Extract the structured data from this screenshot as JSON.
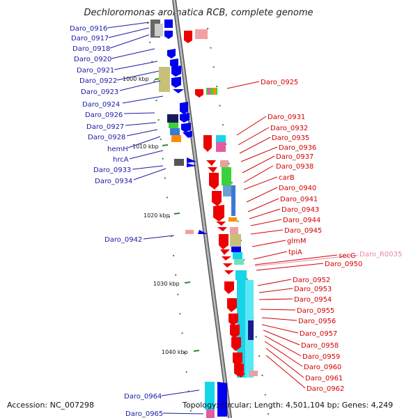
{
  "title": "Dechloromonas aromatica RCB, complete genome",
  "accession": "Accession: NC_007298",
  "summary": "Topology: circular; Length: 4,501,104 bp; Genes: 4,249",
  "ruler_ticks": [
    "1000 kbp",
    "1010 kbp",
    "1020 kbp",
    "1030 kbp",
    "1040 kbp"
  ],
  "left_genes": [
    "Daro_0916",
    "Daro_0917",
    "Daro_0918",
    "Daro_0920",
    "Daro_0921",
    "Daro_0922",
    "Daro_0923",
    "Daro_0924",
    "Daro_0926",
    "Daro_0927",
    "Daro_0928",
    "hemH",
    "hrcA",
    "Daro_0933",
    "Daro_0934",
    "Daro_0942",
    "Daro_0964",
    "Daro_0965"
  ],
  "right_genes": [
    "Daro_0925",
    "Daro_0931",
    "Daro_0932",
    "Daro_0935",
    "Daro_0936",
    "Daro_0937",
    "Daro_0938",
    "carB",
    "Daro_0940",
    "Daro_0941",
    "Daro_0943",
    "Daro_0944",
    "Daro_0945",
    "glmM",
    "tpiA",
    "secG",
    "Daro_0950",
    "Daro_0952",
    "Daro_0953",
    "Daro_0954",
    "Daro_0955",
    "Daro_0956",
    "Daro_0957",
    "Daro_0958",
    "Daro_0959",
    "Daro_0960",
    "Daro_0961",
    "Daro_0962"
  ],
  "rna_genes": [
    "Daro_R0035"
  ],
  "colors": {
    "forward_strand": "#0000ee",
    "reverse_strand": "#ee0000",
    "backbone": "#999999",
    "ruler": "#2a8a2a",
    "cog_cyan": "#17d4e8",
    "cog_olive": "#c8c07a",
    "cog_pink": "#e85aa0",
    "cog_blue": "#3a7ad6",
    "cog_green": "#3ad23a"
  }
}
